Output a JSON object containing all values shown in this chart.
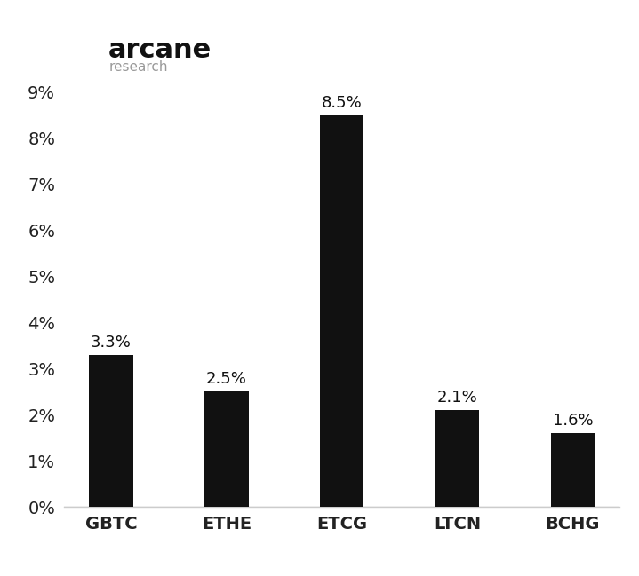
{
  "categories": [
    "GBTC",
    "ETHE",
    "ETCG",
    "LTCN",
    "BCHG"
  ],
  "values": [
    3.3,
    2.5,
    8.5,
    2.1,
    1.6
  ],
  "bar_color": "#111111",
  "background_color": "#ffffff",
  "ylim": [
    0,
    9.5
  ],
  "yticks": [
    0,
    1,
    2,
    3,
    4,
    5,
    6,
    7,
    8,
    9
  ],
  "ytick_labels": [
    "0%",
    "1%",
    "2%",
    "3%",
    "4%",
    "5%",
    "6%",
    "7%",
    "8%",
    "9%"
  ],
  "bar_width": 0.38,
  "label_fontsize": 14,
  "tick_fontsize": 14,
  "logo_text_arcane": "arcane",
  "logo_text_research": "research",
  "logo_fontsize_arcane": 22,
  "logo_fontsize_research": 11,
  "logo_color_arcane": "#111111",
  "logo_color_research": "#999999",
  "value_label_fontsize": 13,
  "spine_color": "#cccccc",
  "tick_color": "#222222"
}
